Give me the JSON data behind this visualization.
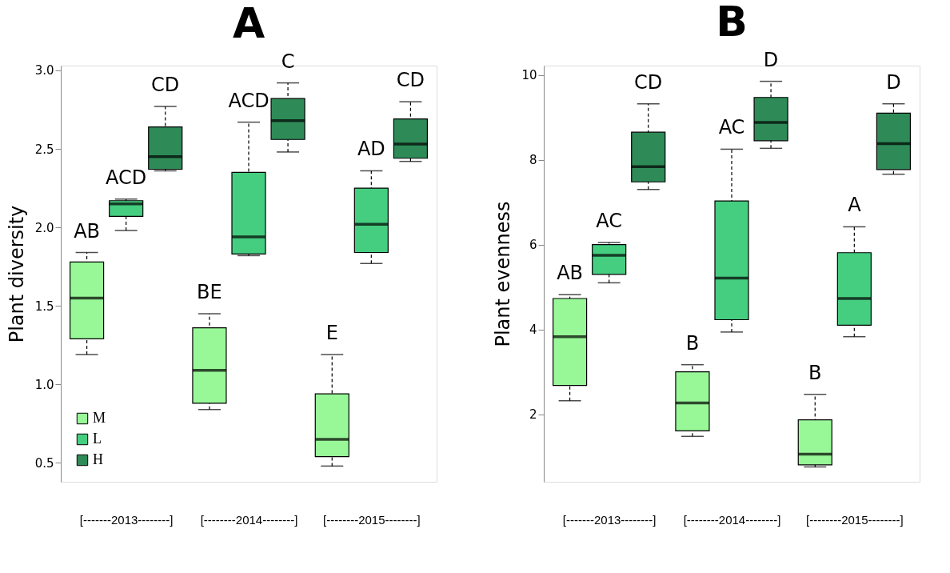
{
  "chart_data": [
    {
      "type": "box",
      "title": "A",
      "ylabel": "Plant diversity",
      "categories": [
        "[-------2013--------]",
        "[--------2014--------]",
        "[--------2015--------]"
      ],
      "ylim": [
        0.38,
        3.03
      ],
      "yticks": [
        {
          "value": 0.5,
          "label": "0.5"
        },
        {
          "value": 1,
          "label": "1.0"
        },
        {
          "value": 1.5,
          "label": "1.5"
        },
        {
          "value": 2,
          "label": "2.0"
        },
        {
          "value": 2.5,
          "label": "2.5"
        },
        {
          "value": 3,
          "label": "3.0"
        }
      ],
      "grid": false,
      "legend": "bottom left",
      "line_style": "dashed",
      "annotations": [
        "AB",
        "ACD",
        "CD",
        "BE",
        "ACD",
        "C",
        "E",
        "AD",
        "CD"
      ],
      "series": [
        {
          "name": "M",
          "color": "#98f898",
          "boxes": [
            {
              "low": 1.19,
              "q1": 1.29,
              "median": 1.55,
              "q3": 1.78,
              "high": 1.84
            },
            {
              "low": 0.84,
              "q1": 0.88,
              "median": 1.09,
              "q3": 1.36,
              "high": 1.45
            },
            {
              "low": 0.48,
              "q1": 0.54,
              "median": 0.65,
              "q3": 0.94,
              "high": 1.19
            }
          ]
        },
        {
          "name": "L",
          "color": "#45cd80",
          "boxes": [
            {
              "low": 1.98,
              "q1": 2.07,
              "median": 2.15,
              "q3": 2.17,
              "high": 2.18
            },
            {
              "low": 1.82,
              "q1": 1.83,
              "median": 1.94,
              "q3": 2.35,
              "high": 2.67
            },
            {
              "low": 1.77,
              "q1": 1.84,
              "median": 2.02,
              "q3": 2.25,
              "high": 2.36
            }
          ]
        },
        {
          "name": "H",
          "color": "#2e8b57",
          "boxes": [
            {
              "low": 2.36,
              "q1": 2.37,
              "median": 2.45,
              "q3": 2.64,
              "high": 2.77
            },
            {
              "low": 2.48,
              "q1": 2.56,
              "median": 2.68,
              "q3": 2.82,
              "high": 2.92
            },
            {
              "low": 2.42,
              "q1": 2.44,
              "median": 2.53,
              "q3": 2.69,
              "high": 2.8
            }
          ]
        }
      ]
    },
    {
      "type": "box",
      "title": "B",
      "ylabel": "Plant evenness",
      "categories": [
        "[-------2013--------]",
        "[--------2014--------]",
        "[--------2015--------]"
      ],
      "ylim": [
        0.41,
        10.22
      ],
      "yticks": [
        2,
        4,
        6,
        8,
        10
      ],
      "grid": false,
      "line_style": "dashed",
      "annotations": [
        "AB",
        "AC",
        "CD",
        "B",
        "AC",
        "D",
        "B",
        "A",
        "D"
      ],
      "series": [
        {
          "color": "#98f898",
          "boxes": [
            {
              "low": 2.32,
              "q1": 2.68,
              "median": 3.83,
              "q3": 4.73,
              "high": 4.82
            },
            {
              "low": 1.48,
              "q1": 1.61,
              "median": 2.27,
              "q3": 3.0,
              "high": 3.17
            },
            {
              "low": 0.76,
              "q1": 0.81,
              "median": 1.06,
              "q3": 1.87,
              "high": 2.47
            }
          ]
        },
        {
          "color": "#45cd80",
          "boxes": [
            {
              "low": 5.1,
              "q1": 5.3,
              "median": 5.75,
              "q3": 6.0,
              "high": 6.05
            },
            {
              "low": 3.94,
              "q1": 4.23,
              "median": 5.21,
              "q3": 7.03,
              "high": 8.25
            },
            {
              "low": 3.83,
              "q1": 4.1,
              "median": 4.73,
              "q3": 5.81,
              "high": 6.42
            }
          ]
        },
        {
          "color": "#2e8b57",
          "boxes": [
            {
              "low": 7.3,
              "q1": 7.48,
              "median": 7.84,
              "q3": 8.65,
              "high": 9.32
            },
            {
              "low": 8.27,
              "q1": 8.45,
              "median": 8.88,
              "q3": 9.47,
              "high": 9.85
            },
            {
              "low": 7.66,
              "q1": 7.77,
              "median": 8.38,
              "q3": 9.1,
              "high": 9.32
            }
          ]
        }
      ]
    }
  ]
}
